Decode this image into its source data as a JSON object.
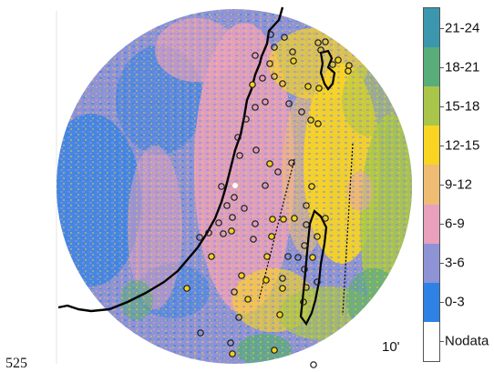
{
  "map": {
    "corner_left_label": "525",
    "corner_right_label": "10'",
    "legend": {
      "bins": [
        {
          "label": "Nodata",
          "color": "#ffffff"
        },
        {
          "label": "0-3",
          "color": "#2e82e6"
        },
        {
          "label": "3-6",
          "color": "#8e93d6"
        },
        {
          "label": "6-9",
          "color": "#e8a0bd"
        },
        {
          "label": "9-12",
          "color": "#efbc73"
        },
        {
          "label": "12-15",
          "color": "#f9d422"
        },
        {
          "label": "15-18",
          "color": "#a9c64a"
        },
        {
          "label": "18-21",
          "color": "#59ad78"
        },
        {
          "label": "21-24",
          "color": "#3b97ae"
        }
      ]
    },
    "colors": {
      "coastline": "#000000",
      "fault_line": "#000000",
      "station_fill": "#f2d022",
      "station_outline": "#1a1a1a",
      "highlight_point": "#ffffff"
    },
    "station_count": 79
  }
}
